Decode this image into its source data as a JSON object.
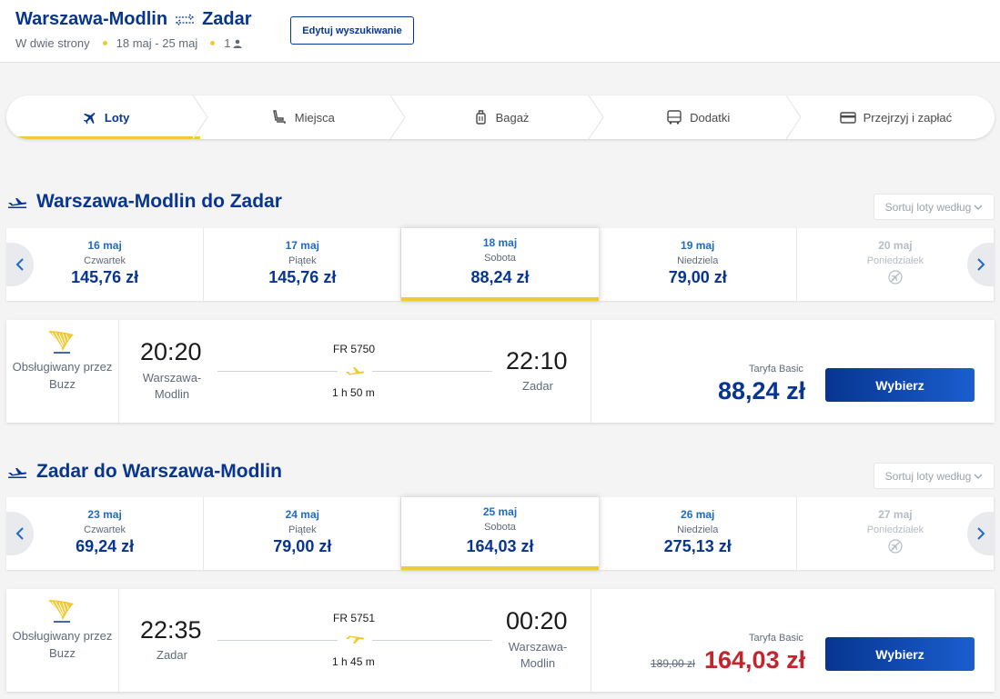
{
  "header": {
    "origin": "Warszawa-Modlin",
    "destination": "Zadar",
    "trip_type": "W dwie strony",
    "dates": "18 maj - 25 maj",
    "passengers": "1",
    "edit_button": "Edytuj wyszukiwanie"
  },
  "stepper": {
    "steps": [
      {
        "label": "Loty",
        "icon": "plane-icon",
        "active": true
      },
      {
        "label": "Miejsca",
        "icon": "seat-icon",
        "active": false
      },
      {
        "label": "Bagaż",
        "icon": "luggage-icon",
        "active": false
      },
      {
        "label": "Dodatki",
        "icon": "bus-icon",
        "active": false
      },
      {
        "label": "Przejrzyj i zapłać",
        "icon": "card-icon",
        "active": false
      }
    ]
  },
  "outbound": {
    "title": "Warszawa-Modlin do Zadar",
    "sort_label": "Sortuj loty według",
    "dates": [
      {
        "date": "16 maj",
        "weekday": "Czwartek",
        "price": "145,76 zł"
      },
      {
        "date": "17 maj",
        "weekday": "Piątek",
        "price": "145,76 zł"
      },
      {
        "date": "18 maj",
        "weekday": "Sobota",
        "price": "88,24 zł"
      },
      {
        "date": "19 maj",
        "weekday": "Niedziela",
        "price": "79,00 zł"
      },
      {
        "date": "20 maj",
        "weekday": "Poniedziałek",
        "price": ""
      }
    ],
    "flight": {
      "operator": "Obsługiwany przez Buzz",
      "dep_time": "20:20",
      "dep_city": "Warszawa-Modlin",
      "flight_no": "FR 5750",
      "duration": "1 h 50 m",
      "arr_time": "22:10",
      "arr_city": "Zadar",
      "fare_label": "Taryfa Basic",
      "price": "88,24 zł",
      "select_label": "Wybierz"
    }
  },
  "inbound": {
    "title": "Zadar do Warszawa-Modlin",
    "sort_label": "Sortuj loty według",
    "dates": [
      {
        "date": "23 maj",
        "weekday": "Czwartek",
        "price": "69,24 zł"
      },
      {
        "date": "24 maj",
        "weekday": "Piątek",
        "price": "79,00 zł"
      },
      {
        "date": "25 maj",
        "weekday": "Sobota",
        "price": "164,03 zł"
      },
      {
        "date": "26 maj",
        "weekday": "Niedziela",
        "price": "275,13 zł"
      },
      {
        "date": "27 maj",
        "weekday": "Poniedziałek",
        "price": ""
      }
    ],
    "flight": {
      "operator": "Obsługiwany przez Buzz",
      "dep_time": "22:35",
      "dep_city": "Zadar",
      "flight_no": "FR 5751",
      "duration": "1 h 45 m",
      "arr_time": "00:20",
      "arr_city": "Warszawa-Modlin",
      "fare_label": "Taryfa Basic",
      "old_price": "189,00 zł",
      "price": "164,03 zł",
      "select_label": "Wybierz"
    }
  },
  "colors": {
    "brand_blue": "#073590",
    "accent_yellow": "#f1c933",
    "promo_red": "#c0262d"
  }
}
